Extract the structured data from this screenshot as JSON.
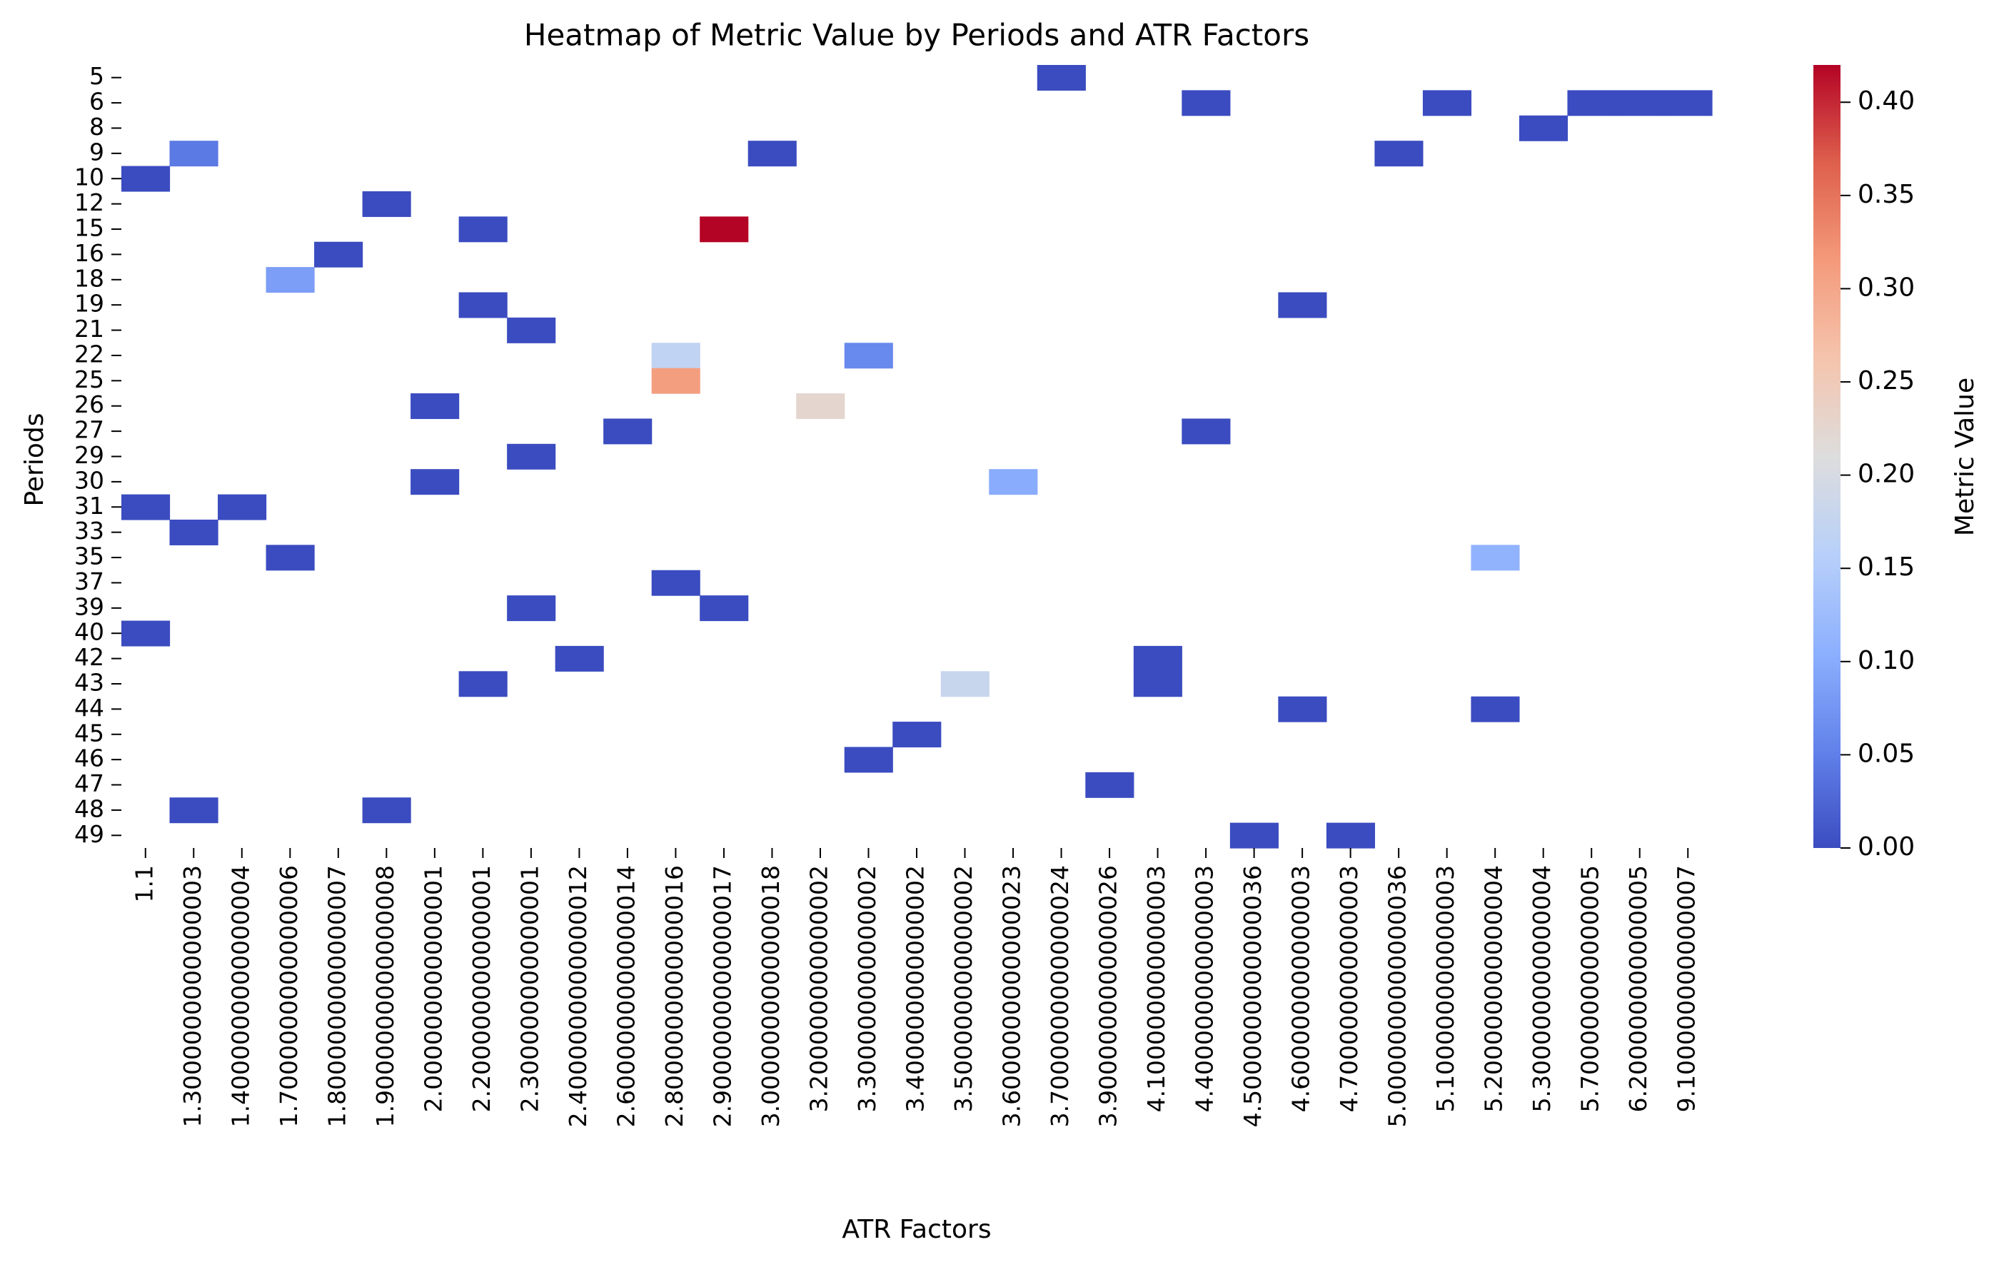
{
  "chart_data": {
    "type": "heatmap",
    "title": "Heatmap of Metric Value by Periods and ATR Factors",
    "xlabel": "ATR Factors",
    "ylabel": "Periods",
    "colorbar_label": "Metric Value",
    "colormap": "coolwarm",
    "color_range": [
      0.0,
      0.42
    ],
    "colorbar_ticks": [
      "0.00",
      "0.05",
      "0.10",
      "0.15",
      "0.20",
      "0.25",
      "0.30",
      "0.35",
      "0.40"
    ],
    "colorbar_tick_values": [
      0.0,
      0.05,
      0.1,
      0.15,
      0.2,
      0.25,
      0.3,
      0.35,
      0.4
    ],
    "x_categories": [
      "1.1",
      "1.3000000000000003",
      "1.4000000000000004",
      "1.7000000000000006",
      "1.8000000000000007",
      "1.9000000000000008",
      "2.000000000000001",
      "2.200000000000001",
      "2.300000000000001",
      "2.4000000000000012",
      "2.6000000000000014",
      "2.8000000000000016",
      "2.9000000000000017",
      "3.0000000000000018",
      "3.200000000000002",
      "3.300000000000002",
      "3.400000000000002",
      "3.500000000000002",
      "3.6000000000000023",
      "3.7000000000000024",
      "3.9000000000000026",
      "4.100000000000003",
      "4.400000000000003",
      "4.5000000000000036",
      "4.600000000000003",
      "4.700000000000003",
      "5.0000000000000036",
      "5.100000000000003",
      "5.200000000000004",
      "5.300000000000004",
      "5.700000000000005",
      "6.200000000000005",
      "9.100000000000007"
    ],
    "y_categories": [
      "5",
      "6",
      "8",
      "9",
      "10",
      "12",
      "15",
      "16",
      "18",
      "19",
      "21",
      "22",
      "25",
      "26",
      "27",
      "29",
      "30",
      "31",
      "33",
      "35",
      "37",
      "39",
      "40",
      "42",
      "43",
      "44",
      "45",
      "46",
      "47",
      "48",
      "49"
    ],
    "cells": [
      {
        "period": "5",
        "atr": "3.7000000000000024",
        "value": 0.0
      },
      {
        "period": "6",
        "atr": "4.400000000000003",
        "value": 0.0
      },
      {
        "period": "6",
        "atr": "5.100000000000003",
        "value": 0.0
      },
      {
        "period": "6",
        "atr": "5.700000000000005",
        "value": 0.0
      },
      {
        "period": "6",
        "atr": "6.200000000000005",
        "value": 0.0
      },
      {
        "period": "6",
        "atr": "9.100000000000007",
        "value": 0.0
      },
      {
        "period": "8",
        "atr": "5.300000000000004",
        "value": 0.0
      },
      {
        "period": "9",
        "atr": "1.3000000000000003",
        "value": 0.045
      },
      {
        "period": "9",
        "atr": "3.0000000000000018",
        "value": 0.0
      },
      {
        "period": "9",
        "atr": "5.0000000000000036",
        "value": 0.0
      },
      {
        "period": "10",
        "atr": "1.1",
        "value": 0.0
      },
      {
        "period": "12",
        "atr": "1.9000000000000008",
        "value": 0.0
      },
      {
        "period": "15",
        "atr": "2.200000000000001",
        "value": 0.0
      },
      {
        "period": "15",
        "atr": "2.9000000000000017",
        "value": 0.42
      },
      {
        "period": "16",
        "atr": "1.8000000000000007",
        "value": 0.0
      },
      {
        "period": "18",
        "atr": "1.7000000000000006",
        "value": 0.085
      },
      {
        "period": "19",
        "atr": "2.200000000000001",
        "value": 0.0
      },
      {
        "period": "19",
        "atr": "4.600000000000003",
        "value": 0.0
      },
      {
        "period": "21",
        "atr": "2.300000000000001",
        "value": 0.0
      },
      {
        "period": "22",
        "atr": "2.8000000000000016",
        "value": 0.17
      },
      {
        "period": "22",
        "atr": "3.300000000000002",
        "value": 0.06
      },
      {
        "period": "25",
        "atr": "2.8000000000000016",
        "value": 0.31
      },
      {
        "period": "26",
        "atr": "2.000000000000001",
        "value": 0.0
      },
      {
        "period": "26",
        "atr": "3.200000000000002",
        "value": 0.225
      },
      {
        "period": "27",
        "atr": "2.6000000000000014",
        "value": 0.0
      },
      {
        "period": "27",
        "atr": "4.400000000000003",
        "value": 0.0
      },
      {
        "period": "29",
        "atr": "2.300000000000001",
        "value": 0.0
      },
      {
        "period": "30",
        "atr": "2.000000000000001",
        "value": 0.0
      },
      {
        "period": "30",
        "atr": "3.6000000000000023",
        "value": 0.1
      },
      {
        "period": "31",
        "atr": "1.1",
        "value": 0.0
      },
      {
        "period": "31",
        "atr": "1.4000000000000004",
        "value": 0.0
      },
      {
        "period": "33",
        "atr": "1.3000000000000003",
        "value": 0.0
      },
      {
        "period": "35",
        "atr": "1.7000000000000006",
        "value": 0.0
      },
      {
        "period": "35",
        "atr": "5.200000000000004",
        "value": 0.11
      },
      {
        "period": "37",
        "atr": "2.8000000000000016",
        "value": 0.0
      },
      {
        "period": "39",
        "atr": "2.300000000000001",
        "value": 0.0
      },
      {
        "period": "39",
        "atr": "2.9000000000000017",
        "value": 0.0
      },
      {
        "period": "40",
        "atr": "1.1",
        "value": 0.0
      },
      {
        "period": "42",
        "atr": "2.4000000000000012",
        "value": 0.0
      },
      {
        "period": "42",
        "atr": "4.100000000000003",
        "value": 0.0
      },
      {
        "period": "43",
        "atr": "2.200000000000001",
        "value": 0.0
      },
      {
        "period": "43",
        "atr": "3.500000000000002",
        "value": 0.18
      },
      {
        "period": "43",
        "atr": "4.100000000000003",
        "value": 0.0
      },
      {
        "period": "44",
        "atr": "4.600000000000003",
        "value": 0.0
      },
      {
        "period": "44",
        "atr": "5.200000000000004",
        "value": 0.0
      },
      {
        "period": "45",
        "atr": "3.400000000000002",
        "value": 0.0
      },
      {
        "period": "46",
        "atr": "3.300000000000002",
        "value": 0.0
      },
      {
        "period": "47",
        "atr": "3.9000000000000026",
        "value": 0.0
      },
      {
        "period": "48",
        "atr": "1.3000000000000003",
        "value": 0.0
      },
      {
        "period": "48",
        "atr": "1.9000000000000008",
        "value": 0.0
      },
      {
        "period": "49",
        "atr": "4.5000000000000036",
        "value": 0.0
      },
      {
        "period": "49",
        "atr": "4.700000000000003",
        "value": 0.0
      }
    ]
  }
}
